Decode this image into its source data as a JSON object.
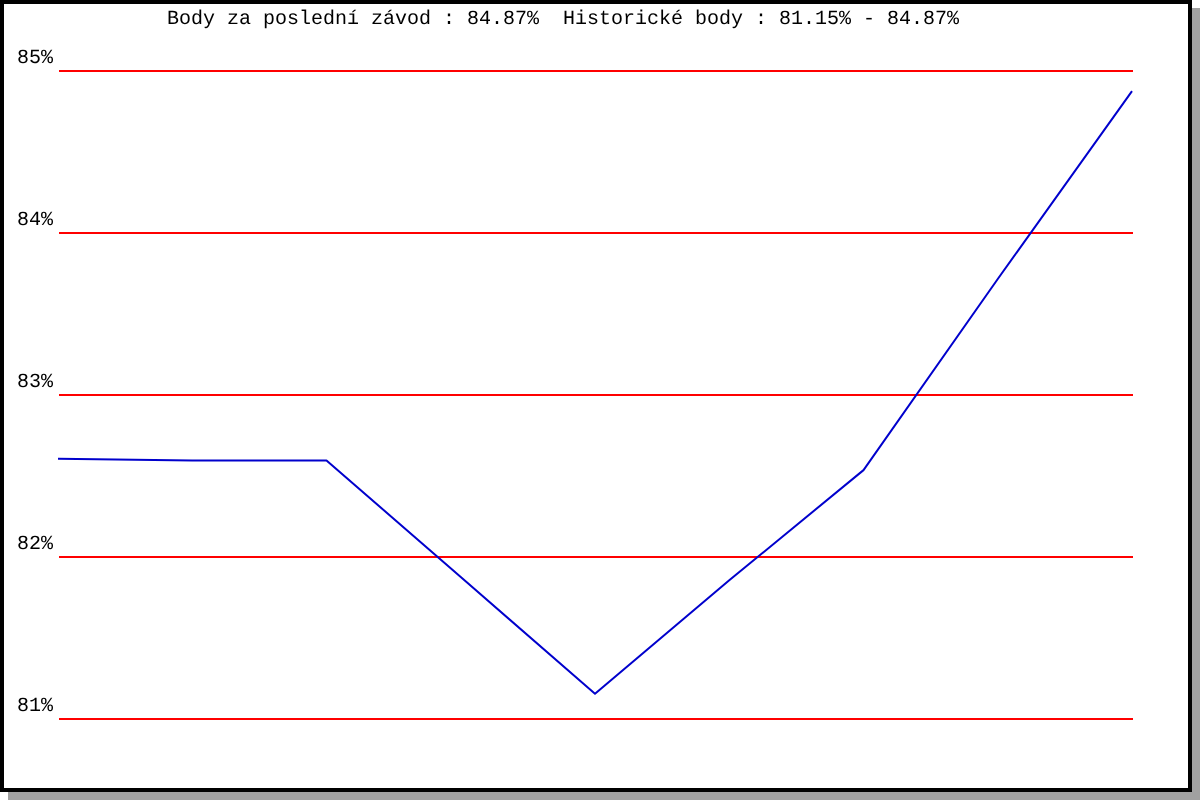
{
  "chart_data": {
    "type": "line",
    "title": "Body za poslední závod : 84.87%  Historické body : 81.15% - 84.87%",
    "categories": [
      null,
      null,
      null,
      null,
      null,
      null,
      null,
      null,
      null
    ],
    "series": [
      {
        "color": "#0000cc",
        "values": [
          82.6,
          82.59,
          82.59,
          81.87,
          81.15,
          81.85,
          82.53,
          83.71,
          84.87
        ]
      }
    ],
    "ylim": [
      81,
      85
    ],
    "yticks": [
      {
        "value": 81,
        "label": "81%"
      },
      {
        "value": 82,
        "label": "82%"
      },
      {
        "value": 83,
        "label": "83%"
      },
      {
        "value": 84,
        "label": "84%"
      },
      {
        "value": 85,
        "label": "85%"
      }
    ],
    "grid": "y",
    "tick_labels": "y"
  }
}
